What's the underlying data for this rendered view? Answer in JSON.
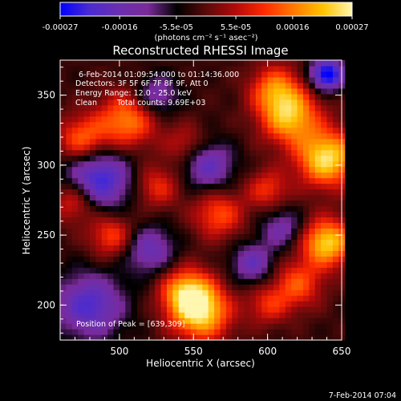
{
  "colorbar": {
    "tick_labels": [
      "-0.00027",
      "-0.00016",
      "-5.5e-05",
      "5.5e-05",
      "0.00016",
      "0.00027"
    ],
    "units": "(photons cm⁻² s⁻¹ asec⁻²)",
    "colormap": [
      "#0000ff",
      "#4b2bd0",
      "#6a2fb0",
      "#7a2a9a",
      "#000000",
      "#5a0a0a",
      "#b10a0a",
      "#ff2a00",
      "#ff7a00",
      "#ffc200",
      "#fff7b0"
    ]
  },
  "chart_data": {
    "type": "heatmap",
    "title": "Reconstructed RHESSI Image",
    "xlabel": "Heliocentric X (arcsec)",
    "ylabel": "Heliocentric Y (arcsec)",
    "xlim": [
      460,
      650
    ],
    "ylim": [
      175,
      375
    ],
    "xticks": [
      500,
      550,
      600,
      650
    ],
    "yticks": [
      200,
      250,
      300,
      350
    ],
    "annotations": [
      "6-Feb-2014 01:09:54.000 to 01:14:36.000",
      "Detectors: 3F 5F 6F 7F 8F 9F, Att 0",
      "Energy Range: 12.0 - 25.0 keV",
      "Clean",
      "Total counts: 9.69E+03"
    ],
    "peak_label": "Position of Peak = [639,309]",
    "peak": [
      639,
      309
    ],
    "footer": "7-Feb-2014 07:04",
    "bright_sources": [
      {
        "x": 555,
        "y": 195,
        "intensity": 0.95,
        "sigma": 14
      },
      {
        "x": 545,
        "y": 210,
        "intensity": 0.75,
        "sigma": 12
      },
      {
        "x": 640,
        "y": 305,
        "intensity": 1.0,
        "sigma": 14
      },
      {
        "x": 640,
        "y": 245,
        "intensity": 0.95,
        "sigma": 12
      },
      {
        "x": 615,
        "y": 335,
        "intensity": 0.85,
        "sigma": 14
      },
      {
        "x": 605,
        "y": 355,
        "intensity": 0.6,
        "sigma": 12
      },
      {
        "x": 505,
        "y": 332,
        "intensity": 0.7,
        "sigma": 14
      },
      {
        "x": 475,
        "y": 318,
        "intensity": 0.65,
        "sigma": 12
      },
      {
        "x": 470,
        "y": 275,
        "intensity": 0.6,
        "sigma": 11
      },
      {
        "x": 495,
        "y": 250,
        "intensity": 0.55,
        "sigma": 11
      },
      {
        "x": 567,
        "y": 265,
        "intensity": 0.55,
        "sigma": 12
      },
      {
        "x": 525,
        "y": 285,
        "intensity": 0.45,
        "sigma": 11
      },
      {
        "x": 600,
        "y": 283,
        "intensity": 0.45,
        "sigma": 10
      },
      {
        "x": 620,
        "y": 215,
        "intensity": 0.55,
        "sigma": 12
      },
      {
        "x": 600,
        "y": 200,
        "intensity": 0.4,
        "sigma": 10
      },
      {
        "x": 545,
        "y": 315,
        "intensity": 0.35,
        "sigma": 10
      }
    ],
    "dark_sources": [
      {
        "x": 485,
        "y": 290,
        "intensity": -0.85,
        "sigma": 16
      },
      {
        "x": 480,
        "y": 200,
        "intensity": -0.7,
        "sigma": 16
      },
      {
        "x": 640,
        "y": 365,
        "intensity": -1.0,
        "sigma": 8
      },
      {
        "x": 560,
        "y": 300,
        "intensity": -0.6,
        "sigma": 12
      },
      {
        "x": 590,
        "y": 230,
        "intensity": -0.55,
        "sigma": 10
      },
      {
        "x": 520,
        "y": 240,
        "intensity": -0.55,
        "sigma": 12
      },
      {
        "x": 525,
        "y": 350,
        "intensity": -0.5,
        "sigma": 10
      },
      {
        "x": 610,
        "y": 255,
        "intensity": -0.45,
        "sigma": 10
      }
    ]
  }
}
